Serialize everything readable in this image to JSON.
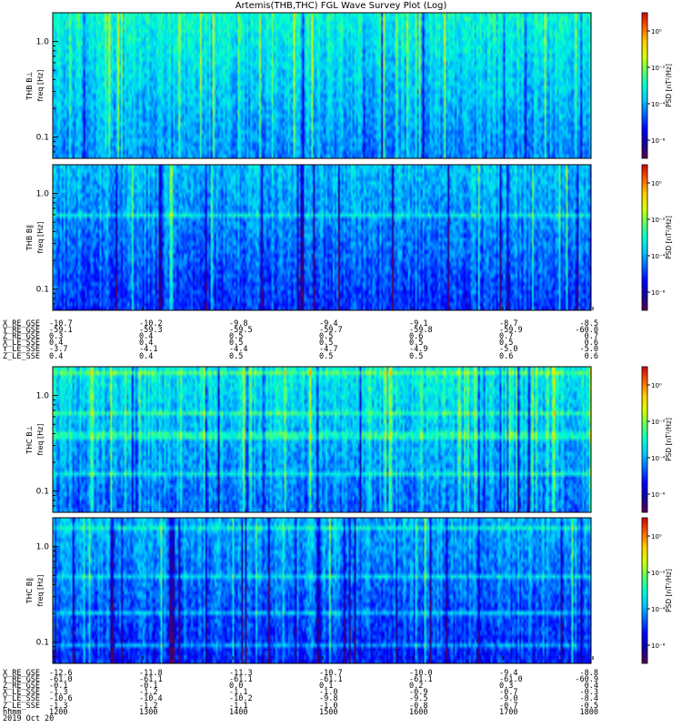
{
  "title": "Artemis(THB,THC) FGL Wave Survey Plot (Log)",
  "colorbar": {
    "label": "PSD [nT²/Hz]",
    "ticks": [
      "10⁰",
      "10⁻²",
      "10⁻⁴",
      "10⁻⁶"
    ],
    "colors": [
      "#5a0050",
      "#1400a0",
      "#0000ff",
      "#0064ff",
      "#00c8ff",
      "#00ffd0",
      "#60ff60",
      "#d8ff00",
      "#ffd000",
      "#ff6000",
      "#d00000"
    ]
  },
  "yticks": [
    "1.0",
    "0.1"
  ],
  "chart_data": [
    {
      "type": "heatmap",
      "probe": "THB",
      "component": "B⊥",
      "ylabel": "THB B⊥",
      "ylabel2": "freq [Hz]",
      "yscale": "log",
      "ylim": [
        0.06,
        2.0
      ],
      "colorbar_log_range": [
        -7,
        1
      ],
      "texture": {
        "base": 0.42,
        "spread": 0.14,
        "bright_cols": 0.09,
        "dark_cols": 0.02
      }
    },
    {
      "type": "heatmap",
      "probe": "THB",
      "component": "B∥",
      "ylabel": "THB B∥",
      "ylabel2": "freq [Hz]",
      "yscale": "log",
      "ylim": [
        0.06,
        2.0
      ],
      "colorbar_log_range": [
        -7,
        1
      ],
      "texture": {
        "base": 0.33,
        "spread": 0.15,
        "bright_cols": 0.02,
        "dark_cols": 0.06
      }
    },
    {
      "type": "heatmap",
      "probe": "THC",
      "component": "B⊥",
      "ylabel": "THC B⊥",
      "ylabel2": "freq [Hz]",
      "yscale": "log",
      "ylim": [
        0.06,
        2.0
      ],
      "colorbar_log_range": [
        -7,
        1
      ],
      "texture": {
        "base": 0.4,
        "spread": 0.15,
        "bright_cols": 0.08,
        "dark_cols": 0.04
      }
    },
    {
      "type": "heatmap",
      "probe": "THC",
      "component": "B∥",
      "ylabel": "THC B∥",
      "ylabel2": "freq [Hz]",
      "yscale": "log",
      "ylim": [
        0.06,
        2.0
      ],
      "colorbar_log_range": [
        -7,
        1
      ],
      "texture": {
        "base": 0.32,
        "spread": 0.15,
        "bright_cols": 0.03,
        "dark_cols": 0.07
      }
    }
  ],
  "orbit_blocks": [
    {
      "probe": "THB",
      "labels": [
        "X_RE_GSE",
        "Y_RE_GSE",
        "Z_RE_GSE",
        "X_LE_SSE",
        "Y_LE_SSE",
        "Z_LE_SSE"
      ],
      "columns": [
        [
          "-10.7",
          "-59.1",
          "0.3",
          "0.4",
          "-3.7",
          "0.4"
        ],
        [
          "-10.2",
          "-59.3",
          "0.4",
          "0.4",
          "-4.1",
          "0.4"
        ],
        [
          "-9.8",
          "-59.5",
          "0.5",
          "0.5",
          "-4.4",
          "0.5"
        ],
        [
          "-9.4",
          "-59.7",
          "0.5",
          "0.5",
          "-4.7",
          "0.5"
        ],
        [
          "-9.1",
          "-59.8",
          "0.6",
          "0.5",
          "-4.9",
          "0.5"
        ],
        [
          "-8.7",
          "-59.9",
          "0.7",
          "0.5",
          "-5.0",
          "0.6"
        ],
        [
          "-8.5",
          "-60.0",
          "0.7",
          "0.6",
          "-5.0",
          "0.6"
        ]
      ]
    },
    {
      "probe": "THC",
      "labels": [
        "X_RE_GSE",
        "Y_RE_GSE",
        "Z_RE_GSE",
        "X_LE_SSE",
        "Y_LE_SSE",
        "Z_LE_SSE",
        "hhmm",
        "2019 Oct 20"
      ],
      "columns": [
        [
          "-12.6",
          "-61.0",
          "-0.1",
          "-1.3",
          "-10.6",
          "-1.3",
          "1200"
        ],
        [
          "-11.8",
          "-61.1",
          "-0.1",
          "-1.2",
          "-10.4",
          "-1.2",
          "1300"
        ],
        [
          "-11.3",
          "-61.1",
          "0.0",
          "-1.1",
          "-10.2",
          "-1.1",
          "1400"
        ],
        [
          "-10.7",
          "-61.1",
          "0.1",
          "-1.0",
          "-9.8",
          "-1.0",
          "1500"
        ],
        [
          "-10.0",
          "-61.1",
          "0.2",
          "-0.9",
          "-9.5",
          "-0.8",
          "1600"
        ],
        [
          "-9.4",
          "-61.0",
          "0.3",
          "-0.7",
          "-9.0",
          "-0.7",
          "1700"
        ],
        [
          "-8.8",
          "-60.9",
          "0.4",
          "-0.3",
          "-8.4",
          "-0.5",
          "1800"
        ]
      ]
    }
  ]
}
